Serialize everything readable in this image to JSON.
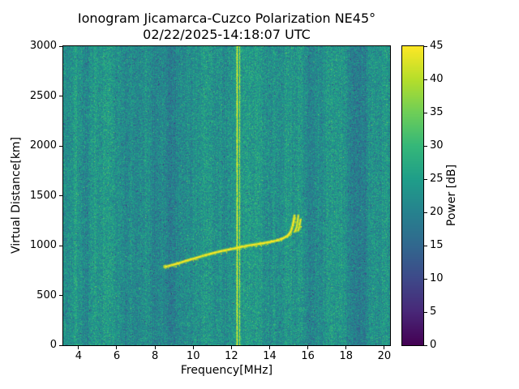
{
  "chart_data": {
    "type": "heatmap",
    "title": "Ionogram Jicamarca-Cuzco Polarization NE45°",
    "subtitle": "02/22/2025-14:18:07 UTC",
    "xlabel": "Frequency[MHz]",
    "ylabel": "Virtual Distance[km]",
    "colorbar_label": "Power [dB]",
    "xlim": [
      3.2,
      20.3
    ],
    "ylim": [
      0,
      3000
    ],
    "clim": [
      0,
      45
    ],
    "xticks": [
      4,
      6,
      8,
      10,
      12,
      14,
      16,
      18,
      20
    ],
    "yticks": [
      0,
      500,
      1000,
      1500,
      2000,
      2500,
      3000
    ],
    "colorbar_ticks": [
      0,
      5,
      10,
      15,
      20,
      25,
      30,
      35,
      40,
      45
    ],
    "colormap": "viridis",
    "colormap_colors": [
      "#440154",
      "#482878",
      "#3e4989",
      "#31688e",
      "#26828e",
      "#1f9e89",
      "#35b779",
      "#6ece58",
      "#b5de2b",
      "#fde725"
    ],
    "background_noise_db": {
      "mean": 23,
      "std": 4
    },
    "interference_bands": [
      {
        "freq": 3.4,
        "width": 0.25,
        "delta_db": -2.5
      },
      {
        "freq": 3.85,
        "width": 0.12,
        "delta_db": 4.5
      },
      {
        "freq": 4.35,
        "width": 0.2,
        "delta_db": -1.5
      },
      {
        "freq": 5.2,
        "width": 0.6,
        "delta_db": 1.2
      },
      {
        "freq": 6.4,
        "width": 0.3,
        "delta_db": -1.5
      },
      {
        "freq": 7.1,
        "width": 0.3,
        "delta_db": -2
      },
      {
        "freq": 7.9,
        "width": 0.35,
        "delta_db": -3
      },
      {
        "freq": 8.75,
        "width": 0.8,
        "delta_db": -3.5
      },
      {
        "freq": 9.9,
        "width": 0.25,
        "delta_db": -2
      },
      {
        "freq": 10.9,
        "width": 0.4,
        "delta_db": 1
      },
      {
        "freq": 12.3,
        "width": 0.06,
        "delta_db": 22
      },
      {
        "freq": 12.43,
        "width": 0.05,
        "delta_db": 16
      },
      {
        "freq": 13.4,
        "width": 0.7,
        "delta_db": 1.5
      },
      {
        "freq": 16.15,
        "width": 0.4,
        "delta_db": -2.5
      },
      {
        "freq": 17.3,
        "width": 0.3,
        "delta_db": 1
      },
      {
        "freq": 18.5,
        "width": 0.55,
        "delta_db": -4.5
      },
      {
        "freq": 19.05,
        "width": 0.2,
        "delta_db": -2
      },
      {
        "freq": 19.8,
        "width": 0.2,
        "delta_db": -1.5
      }
    ],
    "echo_trace": {
      "power_db": 45,
      "main": [
        [
          8.5,
          785
        ],
        [
          8.8,
          800
        ],
        [
          9.2,
          820
        ],
        [
          9.6,
          845
        ],
        [
          10.0,
          868
        ],
        [
          10.4,
          890
        ],
        [
          10.8,
          912
        ],
        [
          11.2,
          932
        ],
        [
          11.6,
          950
        ],
        [
          12.0,
          965
        ],
        [
          12.4,
          982
        ],
        [
          12.8,
          998
        ],
        [
          13.2,
          1010
        ],
        [
          13.6,
          1022
        ],
        [
          14.0,
          1035
        ],
        [
          14.4,
          1052
        ],
        [
          14.7,
          1072
        ],
        [
          14.95,
          1100
        ],
        [
          15.1,
          1140
        ],
        [
          15.2,
          1195
        ],
        [
          15.27,
          1260
        ],
        [
          15.3,
          1300
        ]
      ],
      "cusp_branches": [
        [
          [
            15.32,
            1140
          ],
          [
            15.4,
            1180
          ],
          [
            15.46,
            1240
          ],
          [
            15.5,
            1300
          ]
        ],
        [
          [
            15.5,
            1150
          ],
          [
            15.56,
            1190
          ],
          [
            15.62,
            1260
          ]
        ]
      ]
    }
  }
}
